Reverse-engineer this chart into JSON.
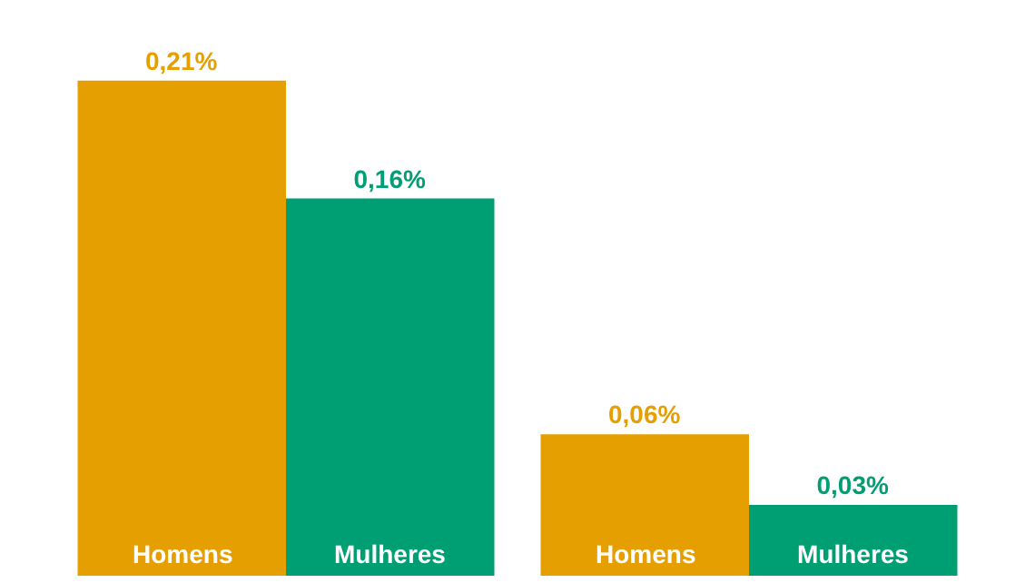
{
  "chart_data": {
    "type": "bar",
    "categories": [
      null,
      null
    ],
    "series": [
      {
        "name": "Homens",
        "color": "#e69f00",
        "values": [
          0.21,
          0.06
        ],
        "value_labels": [
          "0,21%",
          "0,06%"
        ]
      },
      {
        "name": "Mulheres",
        "color": "#009e73",
        "values": [
          0.16,
          0.03
        ],
        "value_labels": [
          "0,16%",
          "0,03%"
        ]
      }
    ],
    "legend": false
  }
}
